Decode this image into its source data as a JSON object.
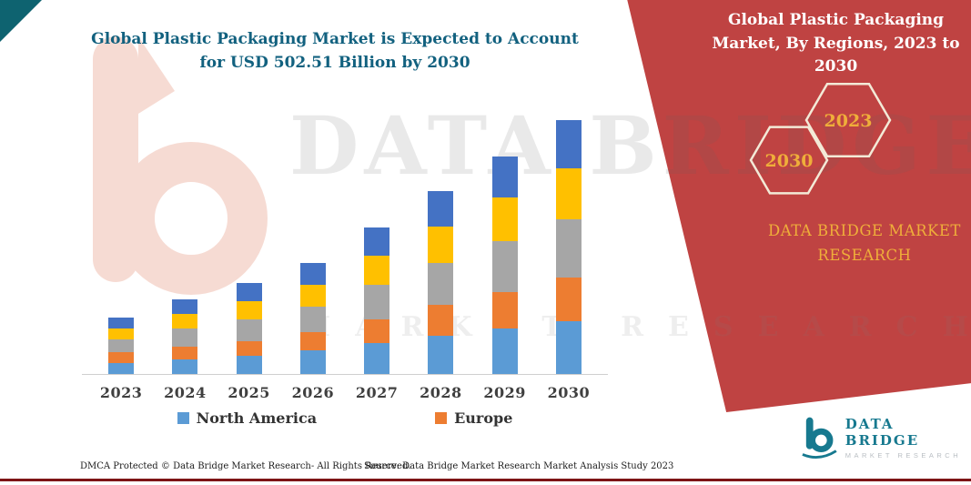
{
  "colors": {
    "panel_red": "#bf4342",
    "accent_yellow": "#efae3a",
    "title_blue": "#12617f",
    "logo_teal": "#17798f",
    "corner_teal": "#0e6370",
    "hex_stroke": "#f3ead7",
    "axis_text": "#3f3f3f",
    "bottom_line_red": "#7e1416",
    "watermark_salmon": "#eaa28e"
  },
  "watermark": {
    "line1": "DATA BRIDGE",
    "line2": "MARKET RESEARCH"
  },
  "right_panel": {
    "heading": "Global Plastic Packaging Market, By Regions, 2023 to 2030",
    "hexagons": [
      {
        "label": "2030"
      },
      {
        "label": "2023"
      }
    ],
    "brand": "DATA BRIDGE MARKET RESEARCH"
  },
  "footer": {
    "dmca": "DMCA Protected © Data Bridge Market Research-  All Rights Reserved.",
    "source": "Source: Data Bridge Market Research  Market Analysis Study 2023",
    "logo_title": "DATA BRIDGE",
    "logo_subtitle": "MARKET RESEARCH"
  },
  "chart_data": {
    "type": "bar",
    "subtype": "stacked",
    "title": "Global Plastic Packaging Market is Expected to Account for USD 502.51 Billion by 2030",
    "xlabel": "",
    "ylabel": "",
    "y_axis_visible": false,
    "gridlines": false,
    "legend_position": "bottom",
    "units": "relative height (no value axis shown)",
    "categories": [
      "2023",
      "2024",
      "2025",
      "2026",
      "2027",
      "2028",
      "2029",
      "2030"
    ],
    "series": [
      {
        "name": "North America",
        "color": "#5b9bd5",
        "in_legend": true,
        "values": [
          12,
          16,
          20,
          26,
          34,
          42,
          50,
          58
        ]
      },
      {
        "name": "Europe",
        "color": "#ed7d31",
        "in_legend": true,
        "values": [
          12,
          14,
          16,
          20,
          26,
          34,
          40,
          48
        ]
      },
      {
        "name": "Unlabeled segment (gray)",
        "color": "#a6a6a6",
        "in_legend": false,
        "values": [
          14,
          20,
          24,
          28,
          38,
          46,
          56,
          64
        ]
      },
      {
        "name": "Unlabeled segment (yellow)",
        "color": "#ffc000",
        "in_legend": false,
        "values": [
          12,
          16,
          20,
          24,
          32,
          40,
          48,
          56
        ]
      },
      {
        "name": "Unlabeled segment (dark blue)",
        "color": "#4472c4",
        "in_legend": false,
        "values": [
          12,
          16,
          20,
          24,
          31,
          39,
          45,
          53
        ]
      }
    ],
    "totals": [
      62,
      82,
      100,
      122,
      161,
      201,
      239,
      279
    ]
  }
}
